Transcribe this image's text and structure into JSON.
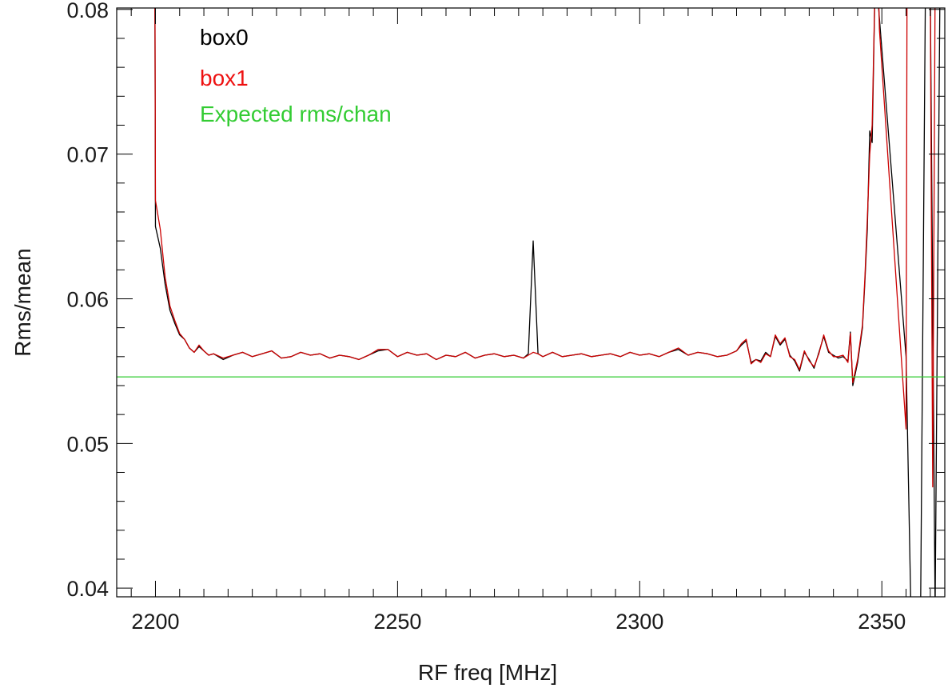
{
  "chart_data": {
    "type": "line",
    "title": "",
    "xlabel": "RF freq [MHz]",
    "ylabel": "Rms/mean",
    "xlim": [
      2192,
      2363
    ],
    "ylim": [
      0.0394,
      0.0801
    ],
    "x_major_ticks": [
      2200,
      2250,
      2300,
      2350
    ],
    "x_minor_step": 5,
    "y_major_ticks": [
      0.04,
      0.05,
      0.06,
      0.07,
      0.08
    ],
    "y_minor_step": 0.002,
    "y_tick_labels": [
      "0.04",
      "0.05",
      "0.06",
      "0.07",
      "0.08"
    ],
    "grid": false,
    "legend_position": "top-left",
    "series": [
      {
        "name": "box0",
        "color": "#000000",
        "x": [
          2199.9,
          2200.0,
          2201.0,
          2202.0,
          2203.0,
          2204.0,
          2205.0,
          2206.0,
          2207.0,
          2208.0,
          2209.0,
          2210.0,
          2211.0,
          2212.0,
          2214.0,
          2216.0,
          2218.0,
          2220.0,
          2222.0,
          2224.0,
          2226.0,
          2228.0,
          2230.0,
          2232.0,
          2234.0,
          2236.0,
          2238.0,
          2240.0,
          2242.0,
          2244.0,
          2246.0,
          2248.0,
          2250.0,
          2252.0,
          2254.0,
          2256.0,
          2258.0,
          2260.0,
          2262.0,
          2264.0,
          2266.0,
          2268.0,
          2270.0,
          2272.0,
          2274.0,
          2276.0,
          2277.0,
          2278.0,
          2279.0,
          2280.0,
          2282.0,
          2284.0,
          2286.0,
          2288.0,
          2290.0,
          2292.0,
          2294.0,
          2296.0,
          2298.0,
          2300.0,
          2302.0,
          2304.0,
          2306.0,
          2308.0,
          2310.0,
          2312.0,
          2314.0,
          2316.0,
          2318.0,
          2320.0,
          2321.0,
          2322.0,
          2323.0,
          2324.0,
          2325.0,
          2326.0,
          2327.0,
          2328.0,
          2329.0,
          2330.0,
          2331.0,
          2332.0,
          2333.0,
          2334.0,
          2335.0,
          2336.0,
          2337.0,
          2338.0,
          2339.0,
          2340.0,
          2341.0,
          2342.0,
          2343.0,
          2343.5,
          2344.0,
          2345.0,
          2346.0,
          2346.5,
          2347.0,
          2347.5,
          2348.0,
          2348.5,
          2349.0,
          2355.0,
          2356.0,
          2357.0,
          2358.0,
          2359.0,
          2360.0,
          2361.0,
          2362.0
        ],
        "values": [
          0.0802,
          0.065,
          0.0635,
          0.061,
          0.0592,
          0.0583,
          0.0575,
          0.0572,
          0.0566,
          0.0563,
          0.0567,
          0.0564,
          0.0561,
          0.0562,
          0.0558,
          0.0561,
          0.0563,
          0.056,
          0.0562,
          0.0564,
          0.0559,
          0.056,
          0.0563,
          0.0561,
          0.0562,
          0.0559,
          0.0561,
          0.056,
          0.0558,
          0.0561,
          0.0564,
          0.0565,
          0.056,
          0.0563,
          0.0561,
          0.0562,
          0.0558,
          0.0561,
          0.056,
          0.0563,
          0.0559,
          0.0561,
          0.0562,
          0.056,
          0.0561,
          0.0559,
          0.0562,
          0.064,
          0.0562,
          0.056,
          0.0563,
          0.056,
          0.0561,
          0.0562,
          0.056,
          0.0561,
          0.0562,
          0.056,
          0.0563,
          0.0561,
          0.0562,
          0.056,
          0.0563,
          0.0565,
          0.0561,
          0.0563,
          0.0562,
          0.056,
          0.0561,
          0.0564,
          0.0568,
          0.0571,
          0.0556,
          0.0558,
          0.0557,
          0.0563,
          0.056,
          0.0574,
          0.0568,
          0.0572,
          0.0561,
          0.0557,
          0.055,
          0.0563,
          0.0558,
          0.0552,
          0.0563,
          0.0574,
          0.0563,
          0.0561,
          0.0559,
          0.056,
          0.0557,
          0.0577,
          0.054,
          0.0556,
          0.058,
          0.0612,
          0.0648,
          0.0716,
          0.0708,
          0.08,
          0.0815,
          0.056,
          0.0385,
          0.0385,
          0.0385,
          0.0815,
          0.0815,
          0.0385,
          0.0815
        ]
      },
      {
        "name": "box1",
        "color": "#cc0000",
        "x": [
          2199.9,
          2200.0,
          2201.0,
          2202.0,
          2203.0,
          2204.0,
          2205.0,
          2206.0,
          2207.0,
          2208.0,
          2209.0,
          2210.0,
          2211.0,
          2212.0,
          2214.0,
          2216.0,
          2218.0,
          2220.0,
          2222.0,
          2224.0,
          2226.0,
          2228.0,
          2230.0,
          2232.0,
          2234.0,
          2236.0,
          2238.0,
          2240.0,
          2242.0,
          2244.0,
          2246.0,
          2248.0,
          2250.0,
          2252.0,
          2254.0,
          2256.0,
          2258.0,
          2260.0,
          2262.0,
          2264.0,
          2266.0,
          2268.0,
          2270.0,
          2272.0,
          2274.0,
          2276.0,
          2277.0,
          2278.0,
          2279.0,
          2280.0,
          2282.0,
          2284.0,
          2286.0,
          2288.0,
          2290.0,
          2292.0,
          2294.0,
          2296.0,
          2298.0,
          2300.0,
          2302.0,
          2304.0,
          2306.0,
          2308.0,
          2310.0,
          2312.0,
          2314.0,
          2316.0,
          2318.0,
          2320.0,
          2321.0,
          2322.0,
          2323.0,
          2324.0,
          2325.0,
          2326.0,
          2327.0,
          2328.0,
          2329.0,
          2330.0,
          2331.0,
          2332.0,
          2333.0,
          2334.0,
          2335.0,
          2336.0,
          2337.0,
          2338.0,
          2339.0,
          2340.0,
          2341.0,
          2342.0,
          2343.0,
          2343.5,
          2344.0,
          2345.0,
          2346.0,
          2346.5,
          2347.0,
          2347.5,
          2348.0,
          2348.5,
          2349.0,
          2349.3,
          2349.5,
          2355.0,
          2355.2,
          2355.5,
          2360.0,
          2360.5,
          2361.0
        ],
        "values": [
          0.0802,
          0.0668,
          0.0648,
          0.0615,
          0.0595,
          0.0585,
          0.0576,
          0.0572,
          0.0566,
          0.0563,
          0.0568,
          0.0564,
          0.0561,
          0.0562,
          0.0559,
          0.0561,
          0.0563,
          0.056,
          0.0562,
          0.0564,
          0.0559,
          0.056,
          0.0563,
          0.0561,
          0.0562,
          0.0559,
          0.0561,
          0.056,
          0.0558,
          0.0561,
          0.0565,
          0.0565,
          0.056,
          0.0563,
          0.0561,
          0.0562,
          0.0558,
          0.0561,
          0.056,
          0.0563,
          0.0559,
          0.0561,
          0.0562,
          0.056,
          0.0561,
          0.0559,
          0.0561,
          0.0563,
          0.0562,
          0.056,
          0.0563,
          0.056,
          0.0561,
          0.0562,
          0.056,
          0.0561,
          0.0562,
          0.056,
          0.0563,
          0.0561,
          0.0562,
          0.056,
          0.0563,
          0.0566,
          0.0561,
          0.0563,
          0.0562,
          0.056,
          0.0561,
          0.0564,
          0.0569,
          0.0572,
          0.0555,
          0.0558,
          0.0556,
          0.0562,
          0.056,
          0.0575,
          0.0569,
          0.0573,
          0.056,
          0.0558,
          0.0551,
          0.0564,
          0.0557,
          0.0553,
          0.0562,
          0.0575,
          0.0564,
          0.056,
          0.056,
          0.0561,
          0.0556,
          0.0576,
          0.0542,
          0.0558,
          0.0582,
          0.0615,
          0.0655,
          0.07,
          0.072,
          0.0802,
          0.0815,
          0.0815,
          0.0786,
          0.051,
          0.0815,
          0.0815,
          0.0815,
          0.047,
          0.0815
        ]
      },
      {
        "name": "Expected rms/chan",
        "color": "#33cc33",
        "x": [
          2192,
          2363
        ],
        "values": [
          0.0546,
          0.0546
        ]
      }
    ]
  }
}
